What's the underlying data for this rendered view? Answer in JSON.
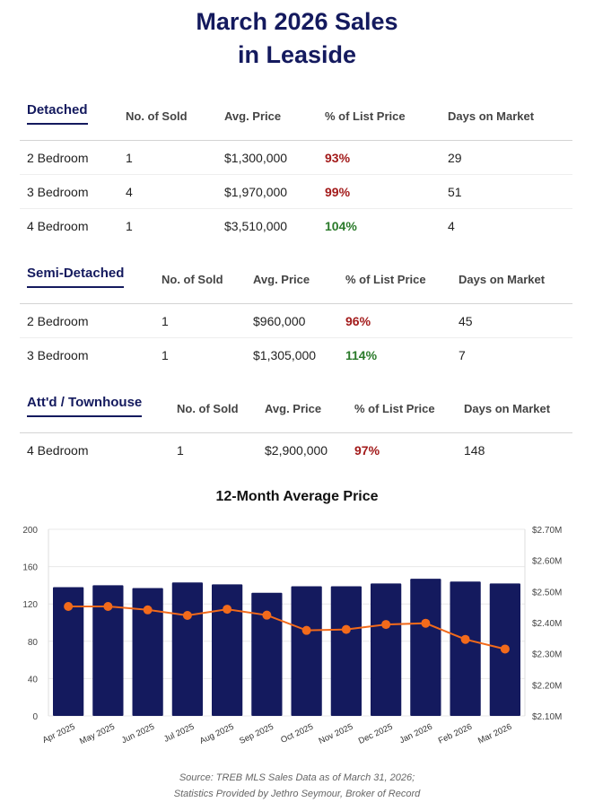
{
  "title_line1": "March 2026 Sales",
  "title_line2": "in Leaside",
  "columns": [
    "No. of Sold",
    "Avg. Price",
    "% of List Price",
    "Days on Market"
  ],
  "colors": {
    "navy": "#141a5e",
    "below_list": "#a31b1b",
    "above_list": "#2a7a2a",
    "line": "#f26a1b"
  },
  "sections": [
    {
      "title": "Detached",
      "rows": [
        {
          "type": "2 Bedroom",
          "sold": "1",
          "price": "$1,300,000",
          "pct": "93%",
          "dom": "29"
        },
        {
          "type": "3 Bedroom",
          "sold": "4",
          "price": "$1,970,000",
          "pct": "99%",
          "dom": "51"
        },
        {
          "type": "4 Bedroom",
          "sold": "1",
          "price": "$3,510,000",
          "pct": "104%",
          "dom": "4"
        }
      ]
    },
    {
      "title": "Semi-Detached",
      "rows": [
        {
          "type": "2 Bedroom",
          "sold": "1",
          "price": "$960,000",
          "pct": "96%",
          "dom": "45"
        },
        {
          "type": "3 Bedroom",
          "sold": "1",
          "price": "$1,305,000",
          "pct": "114%",
          "dom": "7"
        }
      ]
    },
    {
      "title": "Att'd / Townhouse",
      "rows": [
        {
          "type": "4 Bedroom",
          "sold": "1",
          "price": "$2,900,000",
          "pct": "97%",
          "dom": "148"
        }
      ]
    }
  ],
  "chart_data": {
    "type": "bar",
    "title": "12-Month Average Price",
    "categories": [
      "Apr 2025",
      "May 2025",
      "Jun 2025",
      "Jul 2025",
      "Aug 2025",
      "Sep 2025",
      "Oct 2025",
      "Nov 2025",
      "Dec 2025",
      "Jan 2026",
      "Feb 2026",
      "Mar 2026"
    ],
    "series": [
      {
        "name": "Sales",
        "type": "bar",
        "axis": "left",
        "values": [
          138,
          140,
          137,
          143,
          141,
          132,
          139,
          139,
          142,
          147,
          144,
          142
        ]
      },
      {
        "name": "Average Price",
        "type": "line",
        "axis": "right",
        "values": [
          2.452,
          2.452,
          2.441,
          2.423,
          2.443,
          2.424,
          2.375,
          2.378,
          2.394,
          2.398,
          2.346,
          2.315
        ]
      }
    ],
    "ylim_left": [
      0,
      200
    ],
    "yticks_left": [
      "0",
      "40",
      "80",
      "120",
      "160",
      "200"
    ],
    "ylim_right": [
      2.1,
      2.7
    ],
    "yticks_right": [
      "$2.10M",
      "$2.20M",
      "$2.30M",
      "$2.40M",
      "$2.50M",
      "$2.60M",
      "$2.70M"
    ],
    "grid": true
  },
  "source_line1": "Source: TREB MLS Sales Data as of March 31, 2026;",
  "source_line2": "Statistics Provided by Jethro Seymour, Broker of Record"
}
